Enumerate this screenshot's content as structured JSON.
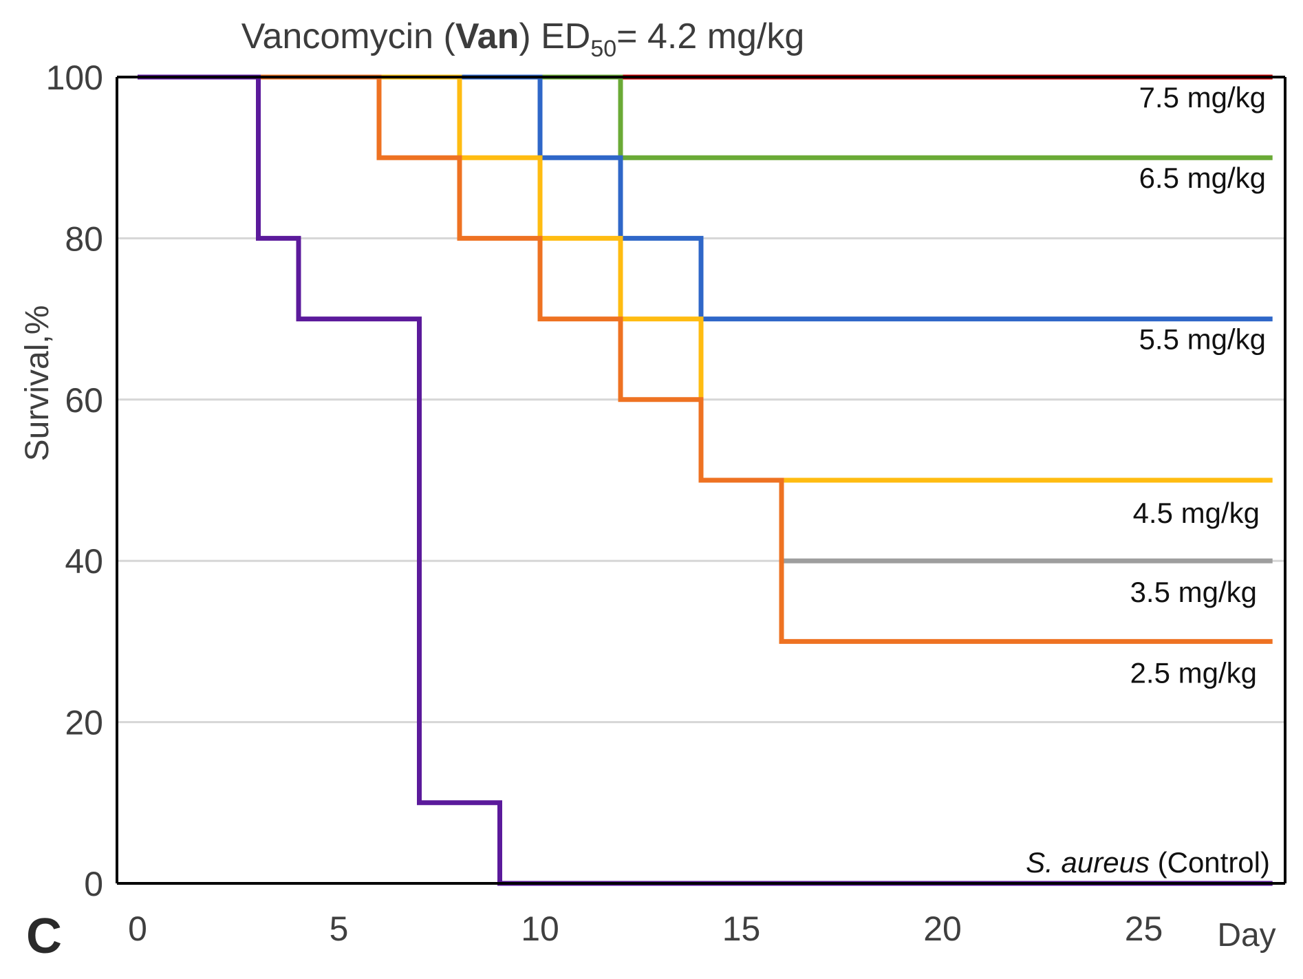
{
  "chart_data": {
    "type": "line",
    "step": true,
    "panel_label": "C",
    "title": {
      "prefix": "Vancomycin (",
      "bold": "Van",
      "middle": ") ED",
      "subscript": "50",
      "suffix": "= 4.2 mg/kg"
    },
    "xlabel": "Day",
    "ylabel": "Survival,%",
    "xlim": [
      0,
      28.5
    ],
    "ylim": [
      0,
      100
    ],
    "xticks": [
      0,
      5,
      10,
      15,
      20,
      25
    ],
    "yticks": [
      0,
      20,
      40,
      60,
      80,
      100
    ],
    "grid": true,
    "series": [
      {
        "name": "7.5 mg/kg",
        "color": "#c00000",
        "points": [
          [
            12,
            100
          ],
          [
            28.2,
            100
          ]
        ]
      },
      {
        "name": "6.5 mg/kg",
        "color": "#6aaa36",
        "points": [
          [
            10,
            100
          ],
          [
            12,
            100
          ],
          [
            12,
            90
          ],
          [
            28.2,
            90
          ]
        ]
      },
      {
        "name": "5.5 mg/kg",
        "color": "#2f67c8",
        "points": [
          [
            8,
            100
          ],
          [
            10,
            100
          ],
          [
            10,
            90
          ],
          [
            12,
            90
          ],
          [
            12,
            80
          ],
          [
            14,
            80
          ],
          [
            14,
            70
          ],
          [
            28.2,
            70
          ]
        ]
      },
      {
        "name": "4.5 mg/kg",
        "color": "#ffbc11",
        "points": [
          [
            6,
            100
          ],
          [
            8,
            100
          ],
          [
            8,
            90
          ],
          [
            10,
            90
          ],
          [
            10,
            80
          ],
          [
            12,
            80
          ],
          [
            12,
            70
          ],
          [
            14,
            70
          ],
          [
            14,
            50
          ],
          [
            28.2,
            50
          ]
        ]
      },
      {
        "name": "3.5 mg/kg",
        "color": "#9e9e9e",
        "points": [
          [
            16,
            40
          ],
          [
            28.2,
            40
          ]
        ]
      },
      {
        "name": "2.5 mg/kg",
        "color": "#ee7222",
        "points": [
          [
            3,
            100
          ],
          [
            6,
            100
          ],
          [
            6,
            90
          ],
          [
            8,
            90
          ],
          [
            8,
            80
          ],
          [
            10,
            80
          ],
          [
            10,
            70
          ],
          [
            12,
            70
          ],
          [
            12,
            60
          ],
          [
            14,
            60
          ],
          [
            14,
            50
          ],
          [
            16,
            50
          ],
          [
            16,
            30
          ],
          [
            28.2,
            30
          ]
        ]
      },
      {
        "name_italic": "S. aureus",
        "name_rest": " (Control)",
        "color": "#5b1a9b",
        "points": [
          [
            0,
            100
          ],
          [
            3,
            100
          ],
          [
            3,
            80
          ],
          [
            4,
            80
          ],
          [
            4,
            70
          ],
          [
            7,
            70
          ],
          [
            7,
            10
          ],
          [
            9,
            10
          ],
          [
            9,
            0
          ],
          [
            28.2,
            0
          ]
        ]
      }
    ]
  }
}
